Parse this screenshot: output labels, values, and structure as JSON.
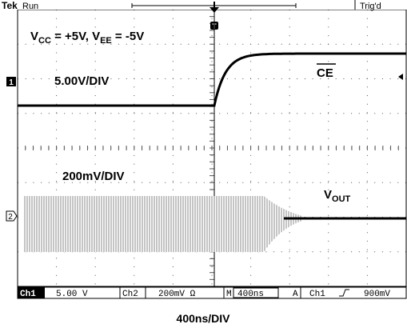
{
  "header": {
    "brand": "Tek",
    "state": "Run",
    "trigger_state": "Trig'd"
  },
  "annotations": {
    "supply": {
      "parts": [
        "V",
        "CC",
        " = +5V, V",
        "EE",
        " = -5V"
      ]
    },
    "ch1_scale": "5.00V/DIV",
    "ce_label": "CE",
    "ch2_scale": "200mV/DIV",
    "vout_label": {
      "parts": [
        "V",
        "OUT"
      ]
    }
  },
  "markers": {
    "ch1": "1",
    "ch2": "2",
    "trigger": "T"
  },
  "status_bar": {
    "ch1": "Ch1",
    "ch1_scale": "5.00 V",
    "ch2": "Ch2",
    "ch2_scale": "200mV Ω",
    "time_mode": "M",
    "time_scale": "400ns",
    "trigger_mode": "A",
    "trigger_source": "Ch1",
    "trigger_level": "900mV"
  },
  "caption": "400ns/DIV"
}
